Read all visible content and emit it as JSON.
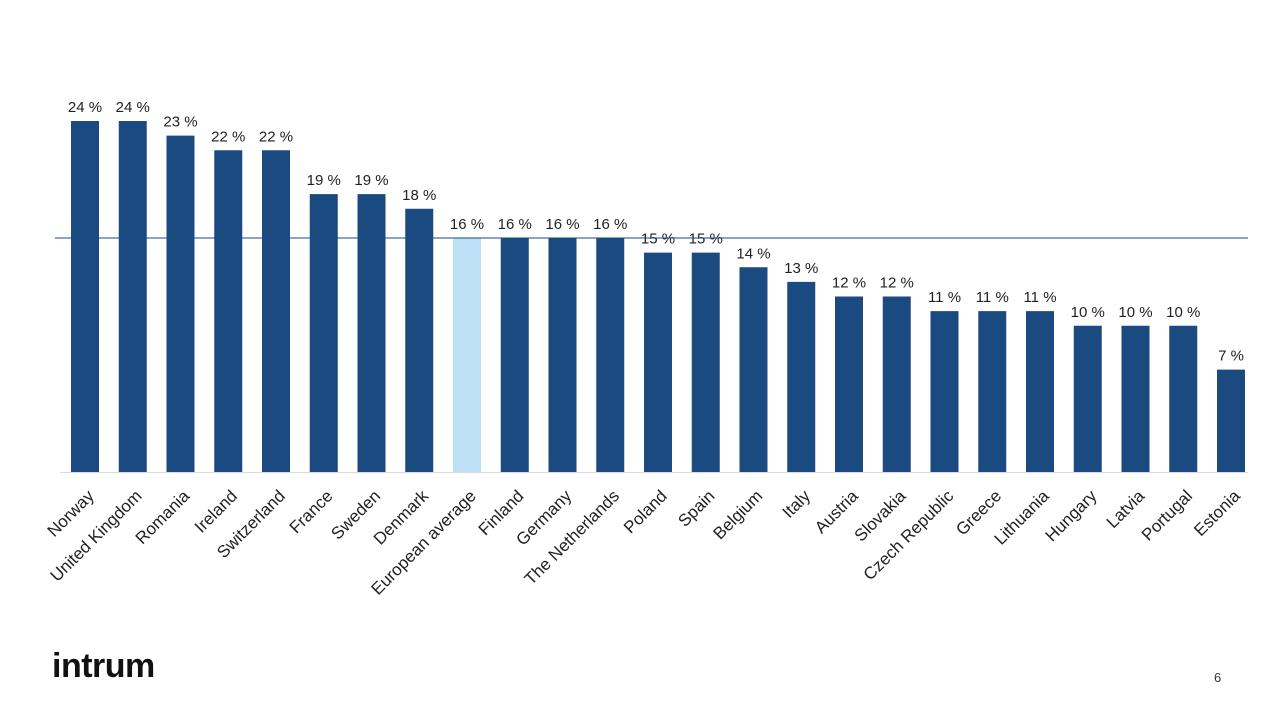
{
  "slide": {
    "logo_text": "intrum",
    "page_number": "6"
  },
  "colors": {
    "bar": "#1a4a80",
    "highlight_bar": "#bde0f6",
    "reference_line": "#1a4a80",
    "baseline": "#d9d9d9",
    "label": "#222222"
  },
  "chart_data": {
    "type": "bar",
    "title": "",
    "xlabel": "",
    "ylabel": "",
    "ylim": [
      0,
      24
    ],
    "grid": false,
    "legend": "none",
    "value_suffix": " %",
    "highlight_category": "European average",
    "reference_line_value": 16,
    "categories": [
      "Norway",
      "United Kingdom",
      "Romania",
      "Ireland",
      "Switzerland",
      "France",
      "Sweden",
      "Denmark",
      "European average",
      "Finland",
      "Germany",
      "The Netherlands",
      "Poland",
      "Spain",
      "Belgium",
      "Italy",
      "Austria",
      "Slovakia",
      "Czech Republic",
      "Greece",
      "Lithuania",
      "Hungary",
      "Latvia",
      "Portugal",
      "Estonia"
    ],
    "values": [
      24,
      24,
      23,
      22,
      22,
      19,
      19,
      18,
      16,
      16,
      16,
      16,
      15,
      15,
      14,
      13,
      12,
      12,
      11,
      11,
      11,
      10,
      10,
      10,
      7
    ]
  }
}
